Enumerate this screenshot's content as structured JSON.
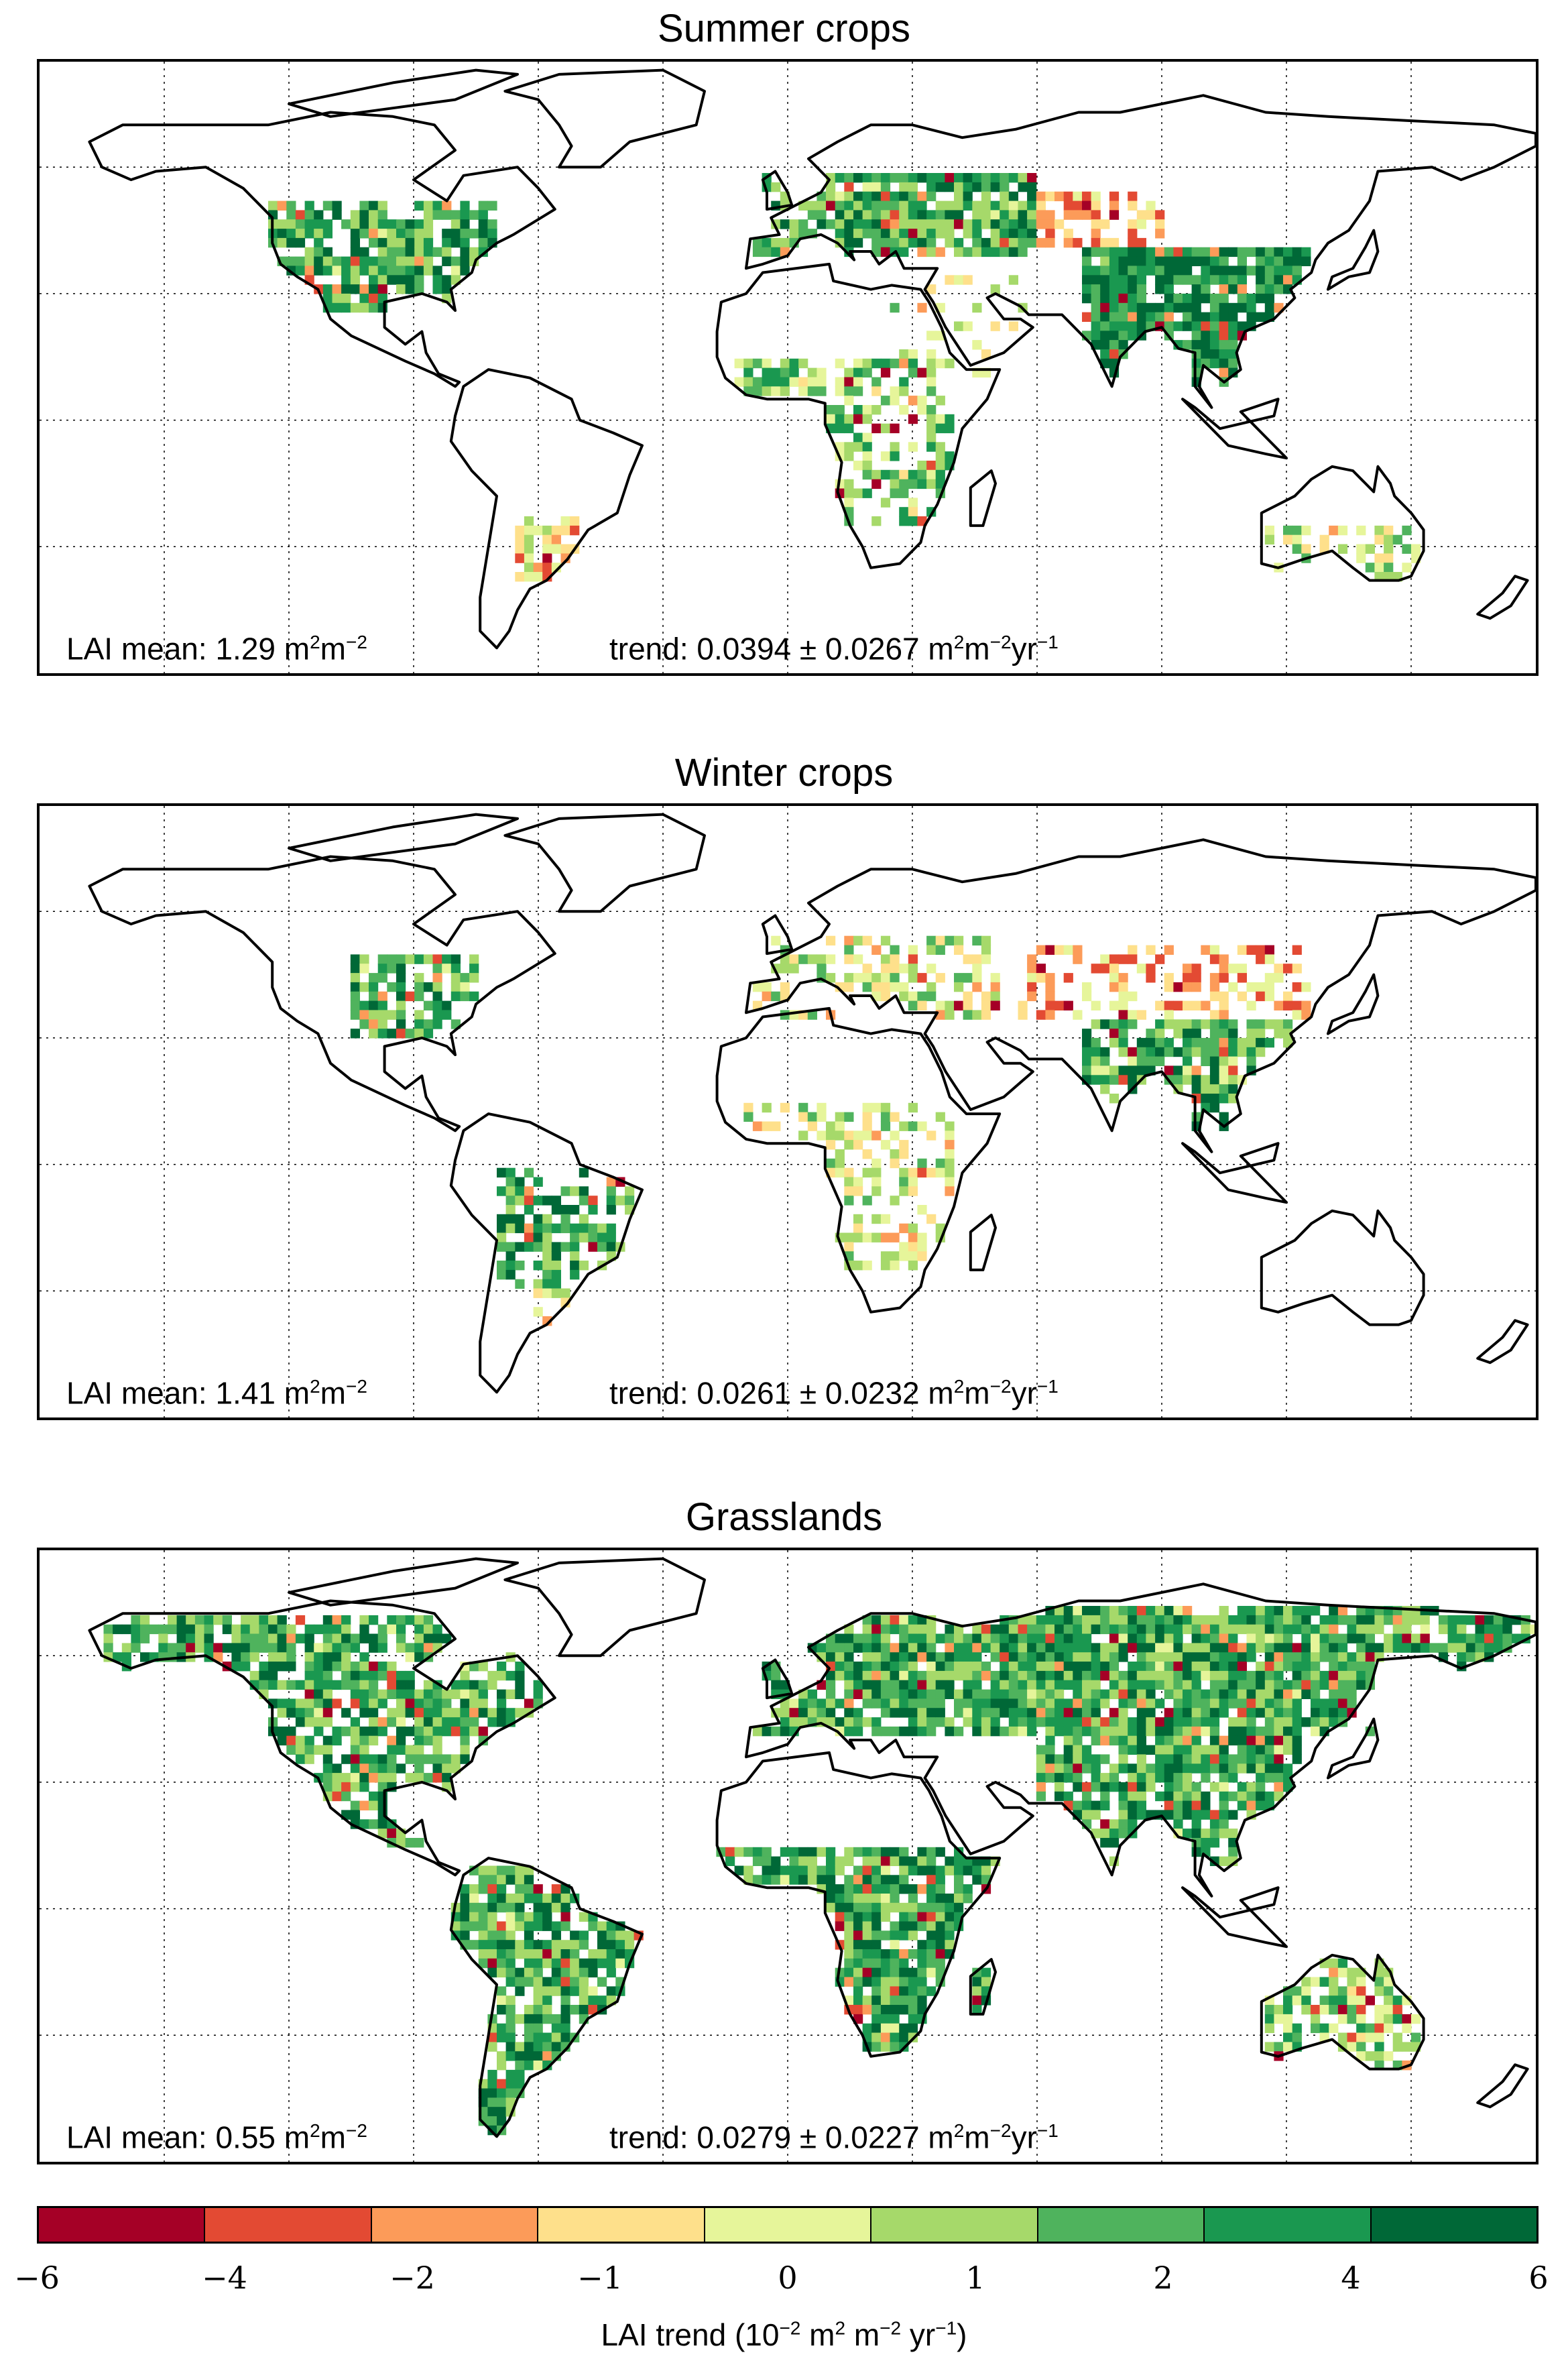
{
  "panels": [
    {
      "title": "Summer crops",
      "mean_label": "LAI mean: 1.29 m",
      "mean_unit_sup1": "2",
      "mean_unit_mid": "m",
      "mean_unit_sup2": "−2",
      "trend_label": "trend: 0.0394 ± 0.0267 m",
      "trend_sup1": "2",
      "trend_mid1": "m",
      "trend_sup2": "−2",
      "trend_mid2": "yr",
      "trend_sup3": "−1",
      "lai_mean": 1.29,
      "trend_value": 0.0394,
      "trend_uncertainty": 0.0267
    },
    {
      "title": "Winter crops",
      "mean_label": "LAI mean: 1.41 m",
      "mean_unit_sup1": "2",
      "mean_unit_mid": "m",
      "mean_unit_sup2": "−2",
      "trend_label": "trend: 0.0261 ± 0.0232 m",
      "trend_sup1": "2",
      "trend_mid1": "m",
      "trend_sup2": "−2",
      "trend_mid2": "yr",
      "trend_sup3": "−1",
      "lai_mean": 1.41,
      "trend_value": 0.0261,
      "trend_uncertainty": 0.0232
    },
    {
      "title": "Grasslands",
      "mean_label": "LAI mean: 0.55 m",
      "mean_unit_sup1": "2",
      "mean_unit_mid": "m",
      "mean_unit_sup2": "−2",
      "trend_label": "trend: 0.0279 ± 0.0227 m",
      "trend_sup1": "2",
      "trend_mid1": "m",
      "trend_sup2": "−2",
      "trend_mid2": "yr",
      "trend_sup3": "−1",
      "lai_mean": 0.55,
      "trend_value": 0.0279,
      "trend_uncertainty": 0.0227
    }
  ],
  "colorbar": {
    "bounds": [
      "−6",
      "−4",
      "−2",
      "−1",
      "0",
      "1",
      "2",
      "4",
      "6"
    ],
    "colors": [
      "#a50026",
      "#e34a33",
      "#fc9b59",
      "#fee08b",
      "#e6f59a",
      "#a6d96a",
      "#4fb35d",
      "#1a9850",
      "#006837"
    ],
    "label_prefix": "LAI trend (10",
    "label_sup1": "−2",
    "label_mid1": " m",
    "label_sup2": "2",
    "label_mid2": " m",
    "label_sup3": "−2",
    "label_mid3": " yr",
    "label_sup4": "−1",
    "label_suffix": ")"
  },
  "map_style": {
    "coastline_color": "#000000",
    "gridline_style": "dotted",
    "ocean_color": "#ffffff"
  }
}
